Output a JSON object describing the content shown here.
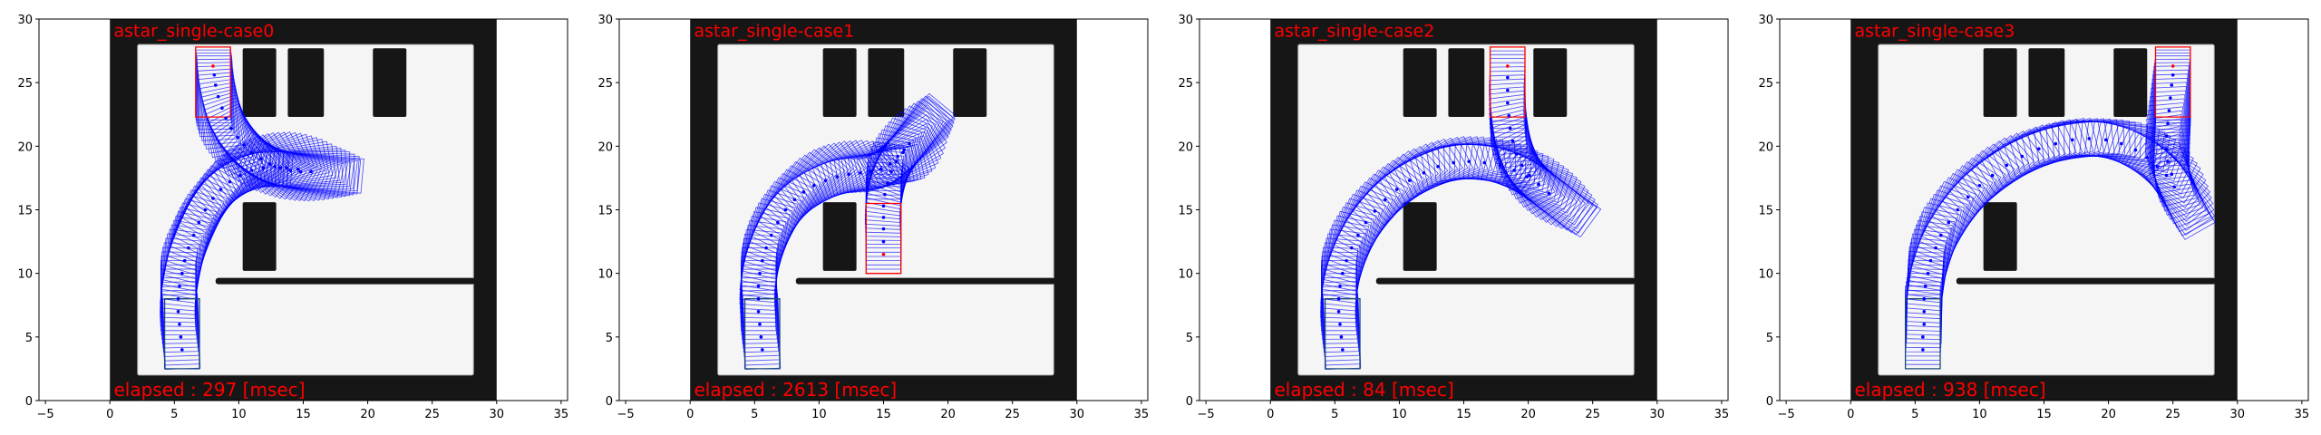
{
  "colors": {
    "wall": "#161616",
    "free_space": "#f5f5f5",
    "free_space_edge": "#b0b0b0",
    "path": "#0000ff",
    "goal": "#ff0000",
    "start": "#1a4a7a",
    "text": "#ff0000"
  },
  "map": {
    "extent": [
      0,
      30,
      0,
      30
    ],
    "free_area": {
      "x": [
        2.15,
        28.2
      ],
      "y": [
        2.0,
        28.0
      ]
    },
    "divider": {
      "x": [
        8.2,
        28.2
      ],
      "y": [
        9.15,
        9.65
      ]
    },
    "obstacles": [
      {
        "x": [
          10.3,
          12.9
        ],
        "y": [
          22.3,
          27.7
        ]
      },
      {
        "x": [
          13.8,
          16.6
        ],
        "y": [
          22.3,
          27.7
        ]
      },
      {
        "x": [
          20.4,
          23.0
        ],
        "y": [
          22.3,
          27.7
        ]
      },
      {
        "x": [
          10.3,
          12.9
        ],
        "y": [
          10.2,
          15.6
        ]
      }
    ]
  },
  "chart_data": [
    {
      "type": "scatter",
      "title": "astar_single-case0",
      "annotation": "elapsed : 297 [msec]",
      "xlim": [
        -5.5,
        35.5
      ],
      "ylim": [
        0,
        30
      ],
      "xticks": [
        "-5",
        "0",
        "5",
        "10",
        "15",
        "20",
        "25",
        "30",
        "35"
      ],
      "yticks": [
        "0",
        "5",
        "10",
        "15",
        "20",
        "25",
        "30"
      ],
      "grid": false,
      "start": [
        5.6,
        4.0,
        90
      ],
      "goal": [
        8.0,
        26.3,
        -90
      ],
      "path": [
        [
          5.6,
          4,
          92
        ],
        [
          5.5,
          5,
          92
        ],
        [
          5.4,
          6,
          91
        ],
        [
          5.3,
          7,
          90
        ],
        [
          5.3,
          8,
          88
        ],
        [
          5.4,
          9,
          84
        ],
        [
          5.6,
          10,
          80
        ],
        [
          5.8,
          11,
          76
        ],
        [
          6.1,
          12,
          72
        ],
        [
          6.5,
          13,
          67
        ],
        [
          6.9,
          14,
          62
        ],
        [
          7.4,
          15,
          57
        ],
        [
          8.0,
          15.9,
          51
        ],
        [
          8.6,
          16.6,
          46
        ],
        [
          9.3,
          17.2,
          40
        ],
        [
          10.1,
          17.7,
          34
        ],
        [
          11.0,
          18.1,
          27
        ],
        [
          11.9,
          18.3,
          20
        ],
        [
          12.8,
          18.4,
          12
        ],
        [
          13.7,
          18.3,
          5
        ],
        [
          14.6,
          18.2,
          0
        ],
        [
          15.6,
          18.0,
          -5
        ],
        [
          14.8,
          18.0,
          -8
        ],
        [
          14.0,
          18.1,
          -12
        ],
        [
          13.2,
          18.3,
          -18
        ],
        [
          12.4,
          18.6,
          -25
        ],
        [
          11.7,
          19.0,
          -32
        ],
        [
          11.0,
          19.5,
          -40
        ],
        [
          10.4,
          20.1,
          -48
        ],
        [
          9.9,
          20.7,
          -56
        ],
        [
          9.4,
          21.4,
          -64
        ],
        [
          9.0,
          22.2,
          -72
        ],
        [
          8.7,
          23.0,
          -78
        ],
        [
          8.4,
          23.9,
          -84
        ],
        [
          8.2,
          24.8,
          -88
        ],
        [
          8.1,
          25.6,
          -90
        ],
        [
          8.0,
          26.3,
          -90
        ]
      ]
    },
    {
      "type": "scatter",
      "title": "astar_single-case1",
      "annotation": "elapsed : 2613 [msec]",
      "xlim": [
        -5.5,
        35.5
      ],
      "ylim": [
        0,
        30
      ],
      "xticks": [
        "-5",
        "0",
        "5",
        "10",
        "15",
        "20",
        "25",
        "30",
        "35"
      ],
      "yticks": [
        "0",
        "5",
        "10",
        "15",
        "20",
        "25",
        "30"
      ],
      "grid": false,
      "start": [
        5.6,
        4.0,
        90
      ],
      "goal": [
        15.0,
        11.5,
        90
      ],
      "path": [
        [
          5.6,
          4,
          92
        ],
        [
          5.5,
          5,
          92
        ],
        [
          5.4,
          6,
          91
        ],
        [
          5.3,
          7,
          90
        ],
        [
          5.3,
          8,
          89
        ],
        [
          5.3,
          9,
          86
        ],
        [
          5.4,
          10,
          82
        ],
        [
          5.6,
          11,
          78
        ],
        [
          5.9,
          12,
          73
        ],
        [
          6.3,
          13,
          68
        ],
        [
          6.8,
          14,
          62
        ],
        [
          7.4,
          15,
          56
        ],
        [
          8.1,
          15.8,
          50
        ],
        [
          8.8,
          16.4,
          44
        ],
        [
          9.6,
          16.9,
          37
        ],
        [
          10.5,
          17.3,
          30
        ],
        [
          11.4,
          17.6,
          22
        ],
        [
          12.3,
          17.8,
          15
        ],
        [
          13.2,
          17.9,
          10
        ],
        [
          14.0,
          18.0,
          12
        ],
        [
          14.8,
          18.2,
          20
        ],
        [
          15.5,
          18.6,
          30
        ],
        [
          16.1,
          19.2,
          40
        ],
        [
          16.6,
          19.7,
          45
        ],
        [
          17.0,
          20.2,
          50
        ],
        [
          16.5,
          19.5,
          55
        ],
        [
          16.0,
          18.8,
          62
        ],
        [
          15.6,
          18.0,
          70
        ],
        [
          15.3,
          17.1,
          77
        ],
        [
          15.1,
          16.2,
          83
        ],
        [
          15.0,
          15.3,
          87
        ],
        [
          15.0,
          14.4,
          89
        ],
        [
          15.0,
          13.5,
          90
        ],
        [
          15.0,
          12.5,
          90
        ],
        [
          15.0,
          11.5,
          90
        ]
      ]
    },
    {
      "type": "scatter",
      "title": "astar_single-case2",
      "annotation": "elapsed : 84 [msec]",
      "xlim": [
        -5.5,
        35.5
      ],
      "ylim": [
        0,
        30
      ],
      "xticks": [
        "-5",
        "0",
        "5",
        "10",
        "15",
        "20",
        "25",
        "30",
        "35"
      ],
      "yticks": [
        "0",
        "5",
        "10",
        "15",
        "20",
        "25",
        "30"
      ],
      "grid": false,
      "start": [
        5.6,
        4.0,
        90
      ],
      "goal": [
        18.4,
        26.3,
        -90
      ],
      "path": [
        [
          5.6,
          4,
          92
        ],
        [
          5.5,
          5,
          92
        ],
        [
          5.4,
          6,
          91
        ],
        [
          5.3,
          7,
          90
        ],
        [
          5.3,
          8,
          88
        ],
        [
          5.4,
          9,
          84
        ],
        [
          5.6,
          10,
          80
        ],
        [
          5.9,
          11,
          75
        ],
        [
          6.3,
          12,
          70
        ],
        [
          6.8,
          13,
          64
        ],
        [
          7.4,
          14,
          58
        ],
        [
          8.1,
          14.9,
          52
        ],
        [
          8.9,
          15.8,
          46
        ],
        [
          9.8,
          16.6,
          39
        ],
        [
          10.8,
          17.3,
          32
        ],
        [
          11.9,
          17.9,
          24
        ],
        [
          13.0,
          18.4,
          15
        ],
        [
          14.2,
          18.7,
          7
        ],
        [
          15.4,
          18.8,
          0
        ],
        [
          16.6,
          18.7,
          -6
        ],
        [
          17.8,
          18.5,
          -12
        ],
        [
          18.9,
          18.1,
          -18
        ],
        [
          19.9,
          17.6,
          -24
        ],
        [
          20.8,
          17.0,
          -30
        ],
        [
          21.6,
          16.3,
          -36
        ],
        [
          20.8,
          17.0,
          -40
        ],
        [
          20.1,
          17.7,
          -48
        ],
        [
          19.5,
          18.5,
          -56
        ],
        [
          19.1,
          19.4,
          -64
        ],
        [
          18.8,
          20.4,
          -72
        ],
        [
          18.6,
          21.4,
          -78
        ],
        [
          18.5,
          22.4,
          -83
        ],
        [
          18.4,
          23.4,
          -87
        ],
        [
          18.4,
          24.4,
          -89
        ],
        [
          18.4,
          25.4,
          -90
        ],
        [
          18.4,
          26.3,
          -90
        ]
      ]
    },
    {
      "type": "scatter",
      "title": "astar_single-case3",
      "annotation": "elapsed : 938 [msec]",
      "xlim": [
        -5.5,
        35.5
      ],
      "ylim": [
        0,
        30
      ],
      "xticks": [
        "-5",
        "0",
        "5",
        "10",
        "15",
        "20",
        "25",
        "30",
        "35"
      ],
      "yticks": [
        "0",
        "5",
        "10",
        "15",
        "20",
        "25",
        "30"
      ],
      "grid": false,
      "start": [
        5.6,
        4.0,
        90
      ],
      "goal": [
        25.0,
        26.3,
        -90
      ],
      "path": [
        [
          5.6,
          4,
          90
        ],
        [
          5.6,
          5,
          90
        ],
        [
          5.7,
          6,
          89
        ],
        [
          5.7,
          7,
          88
        ],
        [
          5.7,
          8,
          87
        ],
        [
          5.8,
          9,
          85
        ],
        [
          6.0,
          10,
          82
        ],
        [
          6.2,
          11,
          78
        ],
        [
          6.6,
          12,
          73
        ],
        [
          7.0,
          13,
          68
        ],
        [
          7.6,
          14,
          62
        ],
        [
          8.3,
          15,
          56
        ],
        [
          9.1,
          16,
          50
        ],
        [
          10.0,
          16.9,
          44
        ],
        [
          11.0,
          17.7,
          37
        ],
        [
          12.1,
          18.5,
          30
        ],
        [
          13.3,
          19.2,
          23
        ],
        [
          14.6,
          19.8,
          16
        ],
        [
          15.9,
          20.2,
          9
        ],
        [
          17.2,
          20.5,
          3
        ],
        [
          18.5,
          20.6,
          -2
        ],
        [
          19.8,
          20.5,
          -7
        ],
        [
          21.0,
          20.2,
          -14
        ],
        [
          22.1,
          19.7,
          -22
        ],
        [
          23.0,
          19.1,
          -30
        ],
        [
          23.8,
          18.4,
          -40
        ],
        [
          24.5,
          17.7,
          -50
        ],
        [
          25.1,
          16.8,
          -60
        ],
        [
          24.9,
          17.8,
          -66
        ],
        [
          24.6,
          18.8,
          -72
        ],
        [
          24.5,
          19.8,
          -78
        ],
        [
          24.5,
          20.8,
          -82
        ],
        [
          24.6,
          21.8,
          -85
        ],
        [
          24.7,
          22.8,
          -87
        ],
        [
          24.8,
          23.8,
          -88
        ],
        [
          24.9,
          24.8,
          -89
        ],
        [
          25.0,
          25.6,
          -90
        ],
        [
          25.0,
          26.3,
          -90
        ]
      ]
    }
  ]
}
